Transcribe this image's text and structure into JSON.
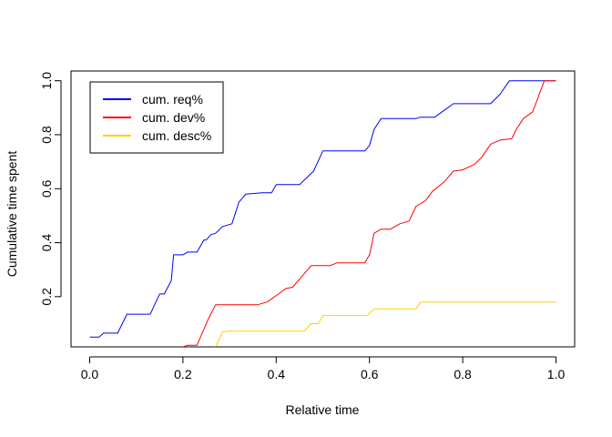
{
  "chart_data": {
    "type": "line",
    "title": "",
    "xlabel": "Relative time",
    "ylabel": "Cumulative time spent",
    "xlim": [
      -0.04,
      1.04
    ],
    "ylim": [
      0.014,
      1.036
    ],
    "xticks": [
      "0.0",
      "0.2",
      "0.4",
      "0.6",
      "0.8",
      "1.0"
    ],
    "xtick_values": [
      0.0,
      0.2,
      0.4,
      0.6,
      0.8,
      1.0
    ],
    "yticks": [
      "0.2",
      "0.4",
      "0.6",
      "0.8",
      "1.0"
    ],
    "ytick_values": [
      0.2,
      0.4,
      0.6,
      0.8,
      1.0
    ],
    "grid": false,
    "legend_position": "top-left",
    "series": [
      {
        "name": "cum. req%",
        "color": "#0000ff",
        "points": [
          [
            0.0,
            0.05
          ],
          [
            0.02,
            0.05
          ],
          [
            0.03,
            0.065
          ],
          [
            0.06,
            0.065
          ],
          [
            0.08,
            0.135
          ],
          [
            0.13,
            0.135
          ],
          [
            0.15,
            0.21
          ],
          [
            0.16,
            0.21
          ],
          [
            0.175,
            0.26
          ],
          [
            0.18,
            0.355
          ],
          [
            0.2,
            0.355
          ],
          [
            0.21,
            0.365
          ],
          [
            0.23,
            0.365
          ],
          [
            0.245,
            0.41
          ],
          [
            0.25,
            0.41
          ],
          [
            0.26,
            0.43
          ],
          [
            0.27,
            0.435
          ],
          [
            0.285,
            0.46
          ],
          [
            0.305,
            0.47
          ],
          [
            0.32,
            0.55
          ],
          [
            0.335,
            0.58
          ],
          [
            0.37,
            0.585
          ],
          [
            0.39,
            0.585
          ],
          [
            0.4,
            0.615
          ],
          [
            0.45,
            0.615
          ],
          [
            0.465,
            0.64
          ],
          [
            0.48,
            0.665
          ],
          [
            0.5,
            0.74
          ],
          [
            0.59,
            0.74
          ],
          [
            0.6,
            0.76
          ],
          [
            0.61,
            0.82
          ],
          [
            0.625,
            0.86
          ],
          [
            0.7,
            0.86
          ],
          [
            0.71,
            0.865
          ],
          [
            0.74,
            0.865
          ],
          [
            0.76,
            0.89
          ],
          [
            0.78,
            0.915
          ],
          [
            0.86,
            0.915
          ],
          [
            0.88,
            0.95
          ],
          [
            0.9,
            1.0
          ],
          [
            1.0,
            1.0
          ]
        ]
      },
      {
        "name": "cum. dev%",
        "color": "#ff0000",
        "points": [
          [
            0.2,
            0.014
          ],
          [
            0.21,
            0.02
          ],
          [
            0.23,
            0.02
          ],
          [
            0.255,
            0.12
          ],
          [
            0.27,
            0.17
          ],
          [
            0.36,
            0.17
          ],
          [
            0.38,
            0.18
          ],
          [
            0.405,
            0.21
          ],
          [
            0.42,
            0.23
          ],
          [
            0.435,
            0.235
          ],
          [
            0.45,
            0.265
          ],
          [
            0.475,
            0.315
          ],
          [
            0.515,
            0.315
          ],
          [
            0.53,
            0.325
          ],
          [
            0.59,
            0.325
          ],
          [
            0.6,
            0.355
          ],
          [
            0.61,
            0.435
          ],
          [
            0.625,
            0.45
          ],
          [
            0.645,
            0.45
          ],
          [
            0.665,
            0.47
          ],
          [
            0.685,
            0.48
          ],
          [
            0.7,
            0.535
          ],
          [
            0.72,
            0.555
          ],
          [
            0.735,
            0.59
          ],
          [
            0.76,
            0.625
          ],
          [
            0.78,
            0.665
          ],
          [
            0.8,
            0.67
          ],
          [
            0.825,
            0.69
          ],
          [
            0.84,
            0.715
          ],
          [
            0.86,
            0.765
          ],
          [
            0.88,
            0.78
          ],
          [
            0.905,
            0.785
          ],
          [
            0.915,
            0.82
          ],
          [
            0.93,
            0.86
          ],
          [
            0.95,
            0.885
          ],
          [
            0.975,
            1.0
          ],
          [
            1.0,
            1.0
          ]
        ]
      },
      {
        "name": "cum. desc%",
        "color": "#ffcc00",
        "points": [
          [
            0.27,
            0.014
          ],
          [
            0.285,
            0.07
          ],
          [
            0.3,
            0.072
          ],
          [
            0.46,
            0.072
          ],
          [
            0.475,
            0.1
          ],
          [
            0.49,
            0.1
          ],
          [
            0.5,
            0.13
          ],
          [
            0.595,
            0.13
          ],
          [
            0.61,
            0.155
          ],
          [
            0.7,
            0.155
          ],
          [
            0.71,
            0.18
          ],
          [
            1.0,
            0.18
          ]
        ]
      }
    ]
  }
}
